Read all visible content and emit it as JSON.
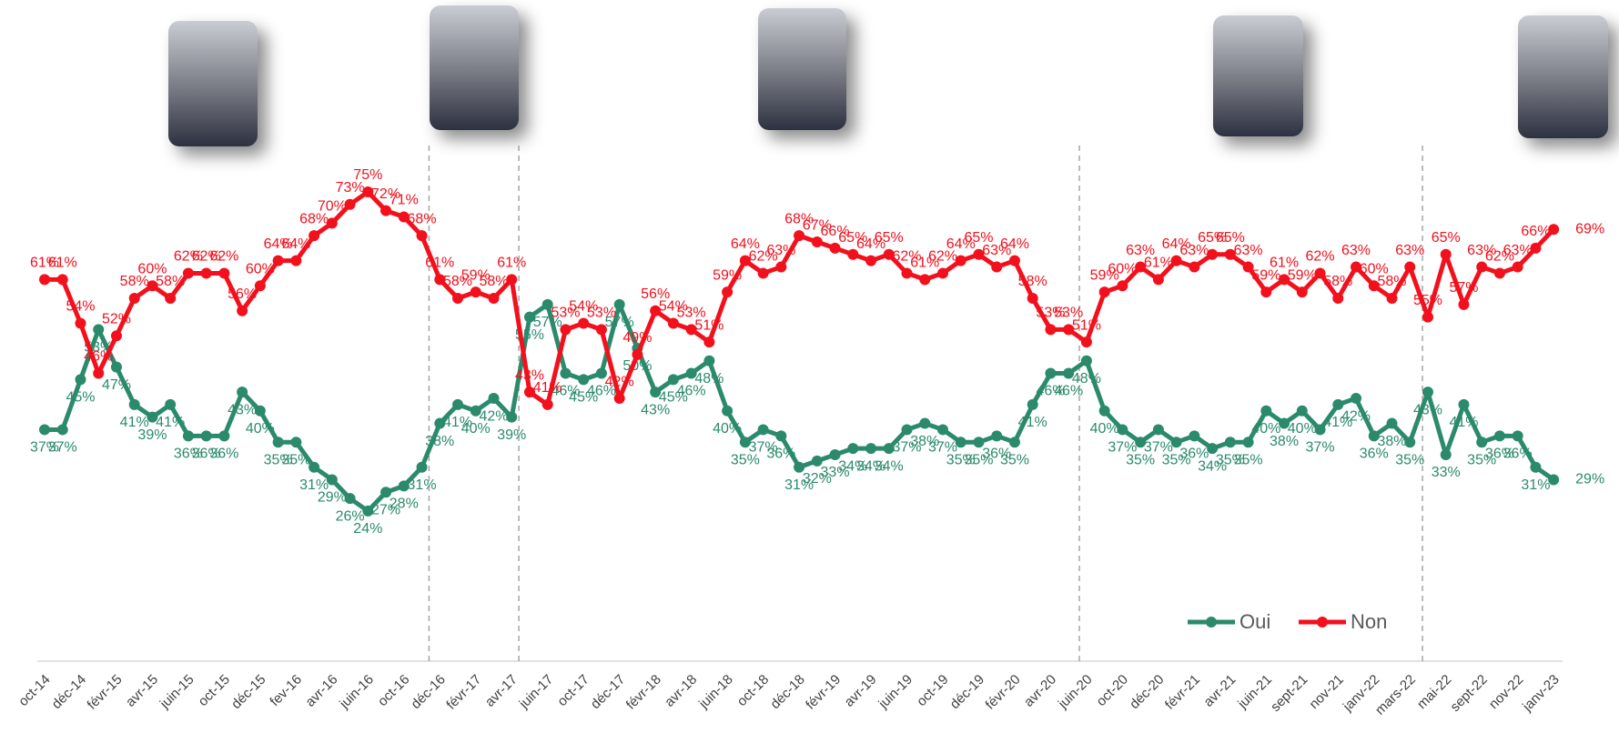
{
  "chart_data": {
    "type": "line",
    "categories": [
      "oct-14",
      null,
      "déc-14",
      null,
      "févr-15",
      null,
      "avr-15",
      null,
      "juin-15",
      null,
      "oct-15",
      null,
      "déc-15",
      null,
      "fev-16",
      null,
      "avr-16",
      null,
      "juin-16",
      null,
      "oct-16",
      null,
      "déc-16",
      null,
      "févr-17",
      null,
      "avr-17",
      null,
      "juin-17",
      null,
      "oct-17",
      null,
      "déc-17",
      null,
      "févr-18",
      null,
      "avr-18",
      null,
      "juin-18",
      null,
      "oct-18",
      null,
      "déc-18",
      null,
      "févr-19",
      null,
      "avr-19",
      null,
      "juin-19",
      null,
      "oct-19",
      null,
      "déc-19",
      null,
      "févr-20",
      null,
      "avr-20",
      null,
      "juin-20",
      null,
      "oct-20",
      null,
      "déc-20",
      null,
      "févr-21",
      null,
      "avr-21",
      null,
      "juin-21",
      null,
      "sept-21",
      null,
      "nov-21",
      null,
      "janv-22",
      null,
      "mars-22",
      null,
      "mai-22",
      null,
      "sept-22",
      null,
      "nov-22",
      null,
      "janv-23"
    ],
    "ylim": [
      0,
      100
    ],
    "series": [
      {
        "name": "Oui",
        "color": "#2b8a6c",
        "values": [
          37,
          37,
          45,
          53,
          47,
          41,
          39,
          41,
          36,
          36,
          36,
          43,
          40,
          35,
          35,
          31,
          29,
          26,
          24,
          27,
          28,
          31,
          38,
          41,
          40,
          42,
          39,
          55,
          57,
          46,
          45,
          46,
          57,
          50,
          43,
          45,
          46,
          48,
          40,
          35,
          37,
          36,
          31,
          32,
          33,
          34,
          34,
          34,
          37,
          38,
          37,
          35,
          35,
          36,
          35,
          41,
          46,
          46,
          48,
          40,
          37,
          35,
          37,
          35,
          36,
          34,
          35,
          35,
          40,
          38,
          40,
          37,
          41,
          42,
          36,
          38,
          35,
          43,
          33,
          41,
          35,
          36,
          36,
          31,
          29
        ],
        "value_labels": [
          "37%",
          "37%",
          "45%",
          "53%",
          "47%",
          "41%",
          "39%",
          "41%",
          "36%",
          "36%",
          "36%",
          "43%",
          "40%",
          "35%",
          "35%",
          "31%",
          "29%",
          "26%",
          "24%",
          "27%",
          "28%",
          "31%",
          "38%",
          "41%",
          "40%",
          "42%",
          "39%",
          "55%",
          "57%",
          "46%",
          "45%",
          "46%",
          "57%",
          "50%",
          "43%",
          "45%",
          "46%",
          "48%",
          "40%",
          "35%",
          "37%",
          "36%",
          "31%",
          "32%",
          "33%",
          "34%",
          "34%",
          "34%",
          "37%",
          "38%",
          "37%",
          "35%",
          "35%",
          "36%",
          "35%",
          "41%",
          "46%",
          "46%",
          "48%",
          "40%",
          "37%",
          "35%",
          "37%",
          "35%",
          "36%",
          "34%",
          "35%",
          "35%",
          "40%",
          "38%",
          "40%",
          "37%",
          "41%",
          "42%",
          "36%",
          "38%",
          "35%",
          "43%",
          "33%",
          "41%",
          "35%",
          "36%",
          "36%",
          "31%",
          "29%"
        ]
      },
      {
        "name": "Non",
        "color": "#f2101c",
        "values": [
          61,
          61,
          54,
          46,
          52,
          58,
          60,
          58,
          62,
          62,
          62,
          56,
          60,
          64,
          64,
          68,
          70,
          73,
          75,
          72,
          71,
          68,
          61,
          58,
          59,
          58,
          61,
          43,
          41,
          53,
          54,
          53,
          42,
          49,
          56,
          54,
          53,
          51,
          59,
          64,
          62,
          63,
          68,
          67,
          66,
          65,
          64,
          65,
          62,
          61,
          62,
          64,
          65,
          63,
          64,
          58,
          53,
          53,
          51,
          59,
          60,
          63,
          61,
          64,
          63,
          65,
          65,
          63,
          59,
          61,
          59,
          62,
          58,
          63,
          60,
          58,
          63,
          55,
          65,
          57,
          63,
          62,
          63,
          66,
          69
        ],
        "value_labels": [
          "61%",
          "61%",
          "54%",
          "46%",
          "52%",
          "58%",
          "60%",
          "58%",
          "62%",
          "62%",
          "62%",
          "56%",
          "60%",
          "64%",
          "64%",
          "68%",
          "70%",
          "73%",
          "75%",
          "72%",
          "71%",
          "68%",
          "61%",
          "58%",
          "59%",
          "58%",
          "61%",
          "43%",
          "41%",
          "53%",
          "54%",
          "53%",
          "42%",
          "49%",
          "56%",
          "54%",
          "53%",
          "51%",
          "59%",
          "64%",
          "62%",
          "63%",
          "68%",
          "67%",
          "66%",
          "65%",
          "64%",
          "65%",
          "62%",
          "61%",
          "62%",
          "64%",
          "65%",
          "63%",
          "64%",
          "58%",
          "53%",
          "53%",
          "51%",
          "59%",
          "60%",
          "63%",
          "61%",
          "64%",
          "63%",
          "65%",
          "65%",
          "63%",
          "59%",
          "61%",
          "59%",
          "62%",
          "58%",
          "63%",
          "60%",
          "58%",
          "63%",
          "55%",
          "65%",
          "57%",
          "63%",
          "62%",
          "63%",
          "66%",
          "69%"
        ]
      }
    ]
  }
}
